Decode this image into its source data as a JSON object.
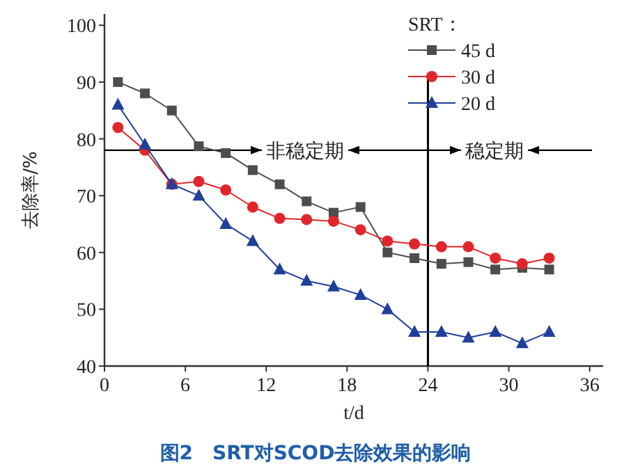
{
  "chart_data": {
    "type": "line",
    "title": "图2　SRT对SCOD去除效果的影响",
    "xlabel": "t/d",
    "ylabel": "去除率/%",
    "legend_title": "SRT：",
    "x": [
      1,
      3,
      5,
      7,
      9,
      11,
      13,
      15,
      17,
      19,
      21,
      23,
      25,
      27,
      29,
      31,
      33
    ],
    "series": [
      {
        "name": "45 d",
        "color": "#4d4d4d",
        "marker": "square",
        "values": [
          90,
          88,
          85,
          78.7,
          77.5,
          74.5,
          72,
          69,
          67,
          68,
          60,
          59,
          58,
          58.3,
          57,
          57.3,
          57
        ]
      },
      {
        "name": "30 d",
        "color": "#e0262b",
        "marker": "circle",
        "values": [
          82,
          78,
          72,
          72.5,
          71,
          68,
          66,
          65.8,
          65.5,
          64,
          62,
          61.5,
          61,
          61,
          59,
          58,
          59
        ]
      },
      {
        "name": "20 d",
        "color": "#1f3f9a",
        "marker": "triangle",
        "values": [
          86,
          79,
          72,
          70,
          65,
          62,
          57,
          55,
          54,
          52.5,
          50,
          46,
          46,
          45,
          46,
          44,
          46
        ]
      }
    ],
    "xlim": [
      0,
      37
    ],
    "xticks": [
      0,
      6,
      12,
      18,
      24,
      30,
      36
    ],
    "ylim": [
      40,
      102
    ],
    "yticks": [
      40,
      50,
      60,
      70,
      80,
      90,
      100
    ],
    "ref_lines": [
      {
        "axis": "x",
        "value": 24,
        "color": "#000000"
      },
      {
        "axis": "y",
        "value": 78,
        "color": "#000000"
      }
    ],
    "annotations": [
      "非稳定期",
      "稳定期"
    ],
    "legend": "top right",
    "grid": false
  }
}
